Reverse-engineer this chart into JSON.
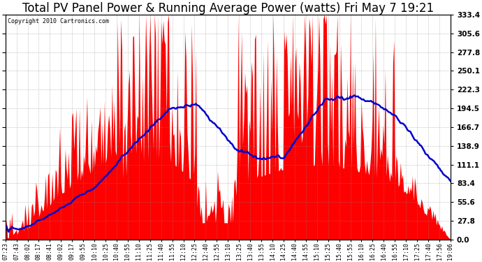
{
  "title": "Total PV Panel Power & Running Average Power (watts) Fri May 7 19:21",
  "copyright": "Copyright 2010 Cartronics.com",
  "ylabel_right": [
    "333.4",
    "305.6",
    "277.8",
    "250.1",
    "222.3",
    "194.5",
    "166.7",
    "138.9",
    "111.1",
    "83.4",
    "55.6",
    "27.8",
    "0.0"
  ],
  "ymax": 333.4,
  "ymin": 0.0,
  "yticks": [
    0.0,
    27.8,
    55.6,
    83.4,
    111.1,
    138.9,
    166.7,
    194.5,
    222.3,
    250.1,
    277.8,
    305.6,
    333.4
  ],
  "bar_color": "#FF0000",
  "line_color": "#0000CC",
  "background_color": "#FFFFFF",
  "grid_color": "#888888",
  "title_fontsize": 12,
  "x_labels": [
    "07:23",
    "07:43",
    "08:02",
    "08:17",
    "08:41",
    "09:02",
    "09:17",
    "09:55",
    "10:10",
    "10:25",
    "10:40",
    "10:55",
    "11:10",
    "11:25",
    "11:40",
    "11:55",
    "12:10",
    "12:25",
    "12:40",
    "12:55",
    "13:10",
    "13:25",
    "13:40",
    "13:55",
    "14:10",
    "14:25",
    "14:40",
    "14:55",
    "15:10",
    "15:25",
    "15:40",
    "15:55",
    "16:10",
    "16:25",
    "16:40",
    "16:55",
    "17:10",
    "17:25",
    "17:40",
    "17:56",
    "19:06"
  ]
}
